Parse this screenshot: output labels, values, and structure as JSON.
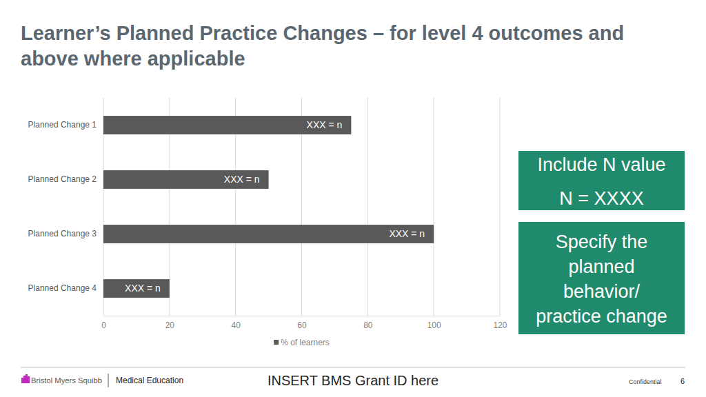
{
  "chart_data": {
    "type": "bar",
    "orientation": "horizontal",
    "title": "Learner’s Planned Practice Changes – for level 4 outcomes and above where applicable",
    "categories": [
      "Planned Change 1",
      "Planned Change 2",
      "Planned Change 3",
      "Planned Change 4"
    ],
    "series": [
      {
        "name": "% of learners",
        "color": "#595959",
        "values": [
          75,
          50,
          100,
          20
        ]
      }
    ],
    "value_labels": [
      "XXX = n",
      "XXX = n",
      "XXX = n",
      "XXX = n"
    ],
    "xlim": [
      0,
      120
    ],
    "xticks": [
      0,
      20,
      40,
      60,
      80,
      100,
      120
    ],
    "grid": true,
    "legend": "bottom"
  },
  "callouts": [
    {
      "lines": [
        "Include N value",
        "N = XXXX"
      ],
      "color": "#1f8a6c"
    },
    {
      "lines": [
        "Specify the",
        "planned",
        "behavior/",
        "practice change"
      ],
      "color": "#1f8a6c"
    }
  ],
  "footer": {
    "logo": "Bristol Myers Squibb",
    "department": "Medical Education",
    "grant": "INSERT BMS Grant ID here",
    "confidential": "Confidential",
    "page": "6"
  }
}
